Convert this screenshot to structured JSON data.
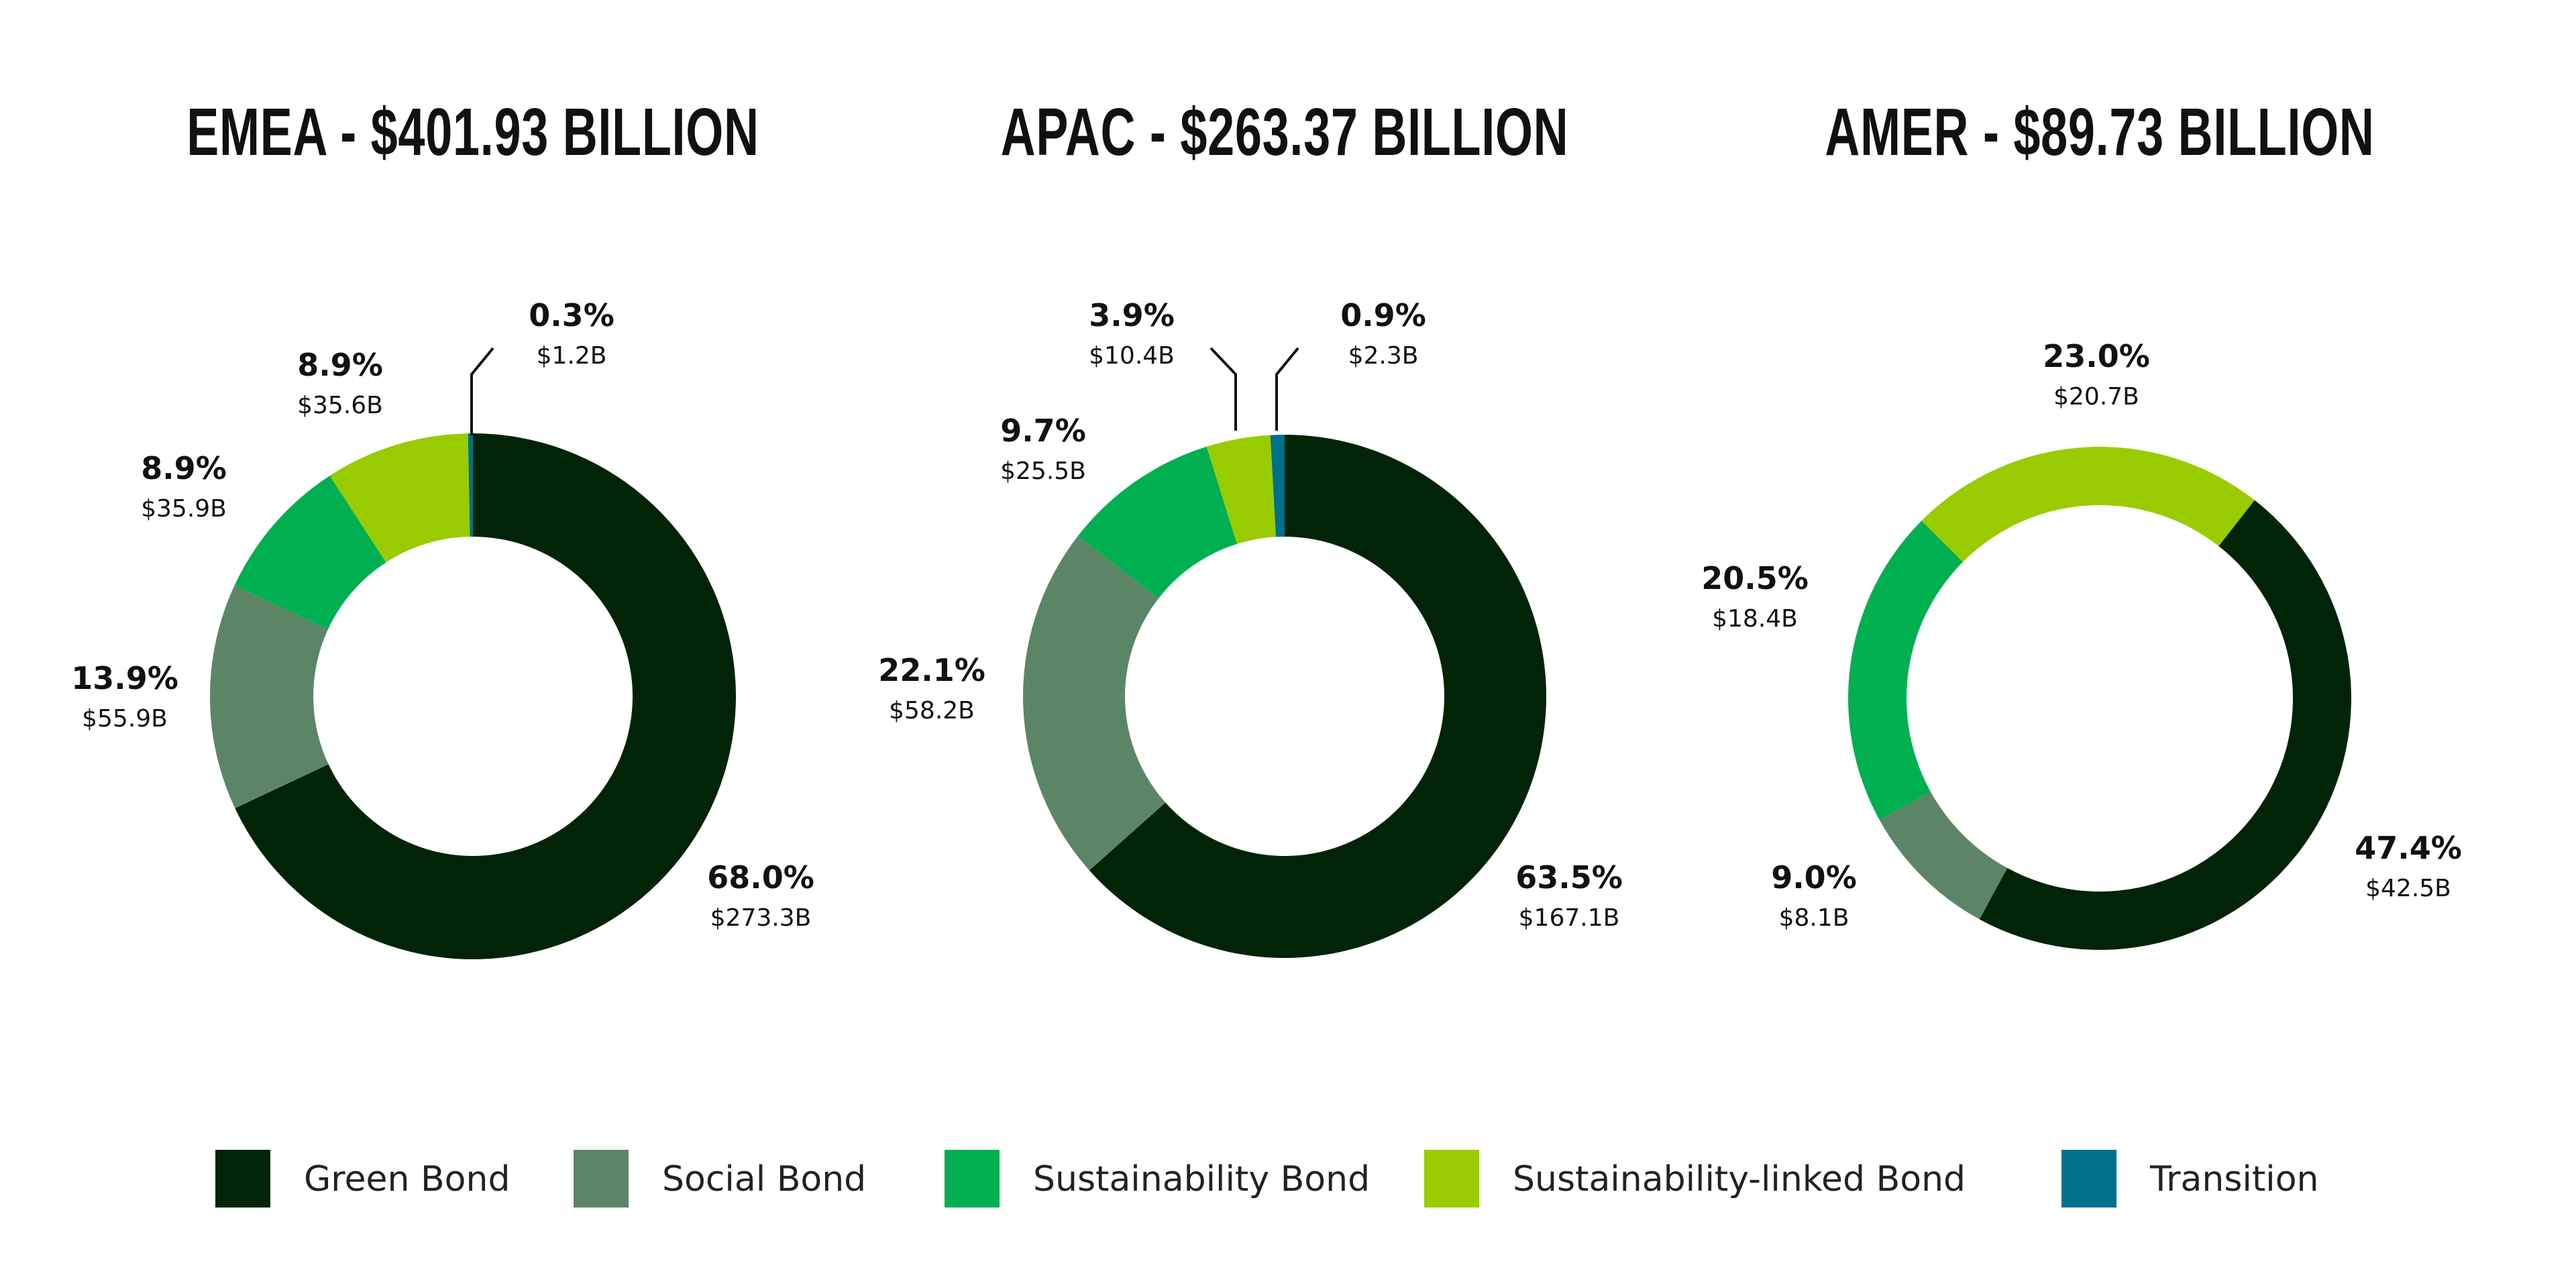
{
  "chart_data": [
    {
      "type": "pie",
      "donut": true,
      "title": "EMEA - $401.93 BILLION",
      "categories": [
        "Green Bond",
        "Social Bond",
        "Sustainability Bond",
        "Sustainability-linked Bond",
        "Transition"
      ],
      "values": [
        273.3,
        55.9,
        35.9,
        35.6,
        1.2
      ],
      "percent_labels": [
        "68.0%",
        "13.9%",
        "8.9%",
        "8.9%",
        "0.3%"
      ],
      "value_labels": [
        "$273.3B",
        "$55.9B",
        "$35.9B",
        "$35.6B",
        "$1.2B"
      ]
    },
    {
      "type": "pie",
      "donut": true,
      "title": "APAC - $263.37 BILLION",
      "categories": [
        "Green Bond",
        "Social Bond",
        "Sustainability Bond",
        "Sustainability-linked Bond",
        "Transition"
      ],
      "values": [
        167.1,
        58.2,
        25.5,
        10.4,
        2.3
      ],
      "percent_labels": [
        "63.5%",
        "22.1%",
        "9.7%",
        "3.9%",
        "0.9%"
      ],
      "value_labels": [
        "$167.1B",
        "$58.2B",
        "$25.5B",
        "$10.4B",
        "$2.3B"
      ]
    },
    {
      "type": "pie",
      "donut": true,
      "title": "AMER - $89.73 BILLION",
      "categories": [
        "Green Bond",
        "Social Bond",
        "Sustainability Bond",
        "Sustainability-linked Bond"
      ],
      "values": [
        42.5,
        8.1,
        18.4,
        20.7
      ],
      "percent_labels": [
        "47.4%",
        "9.0%",
        "20.5%",
        "23.0%"
      ],
      "value_labels": [
        "$42.5B",
        "$8.1B",
        "$18.4B",
        "$20.7B"
      ]
    }
  ],
  "legend": {
    "placement": "bottom",
    "items": [
      {
        "label": "Green Bond",
        "color": "#012406"
      },
      {
        "label": "Social Bond",
        "color": "#5c8566"
      },
      {
        "label": "Sustainability Bond",
        "color": "#00b050"
      },
      {
        "label": "Sustainability-linked Bond",
        "color": "#99cc00"
      },
      {
        "label": "Transition",
        "color": "#00718a"
      }
    ]
  }
}
